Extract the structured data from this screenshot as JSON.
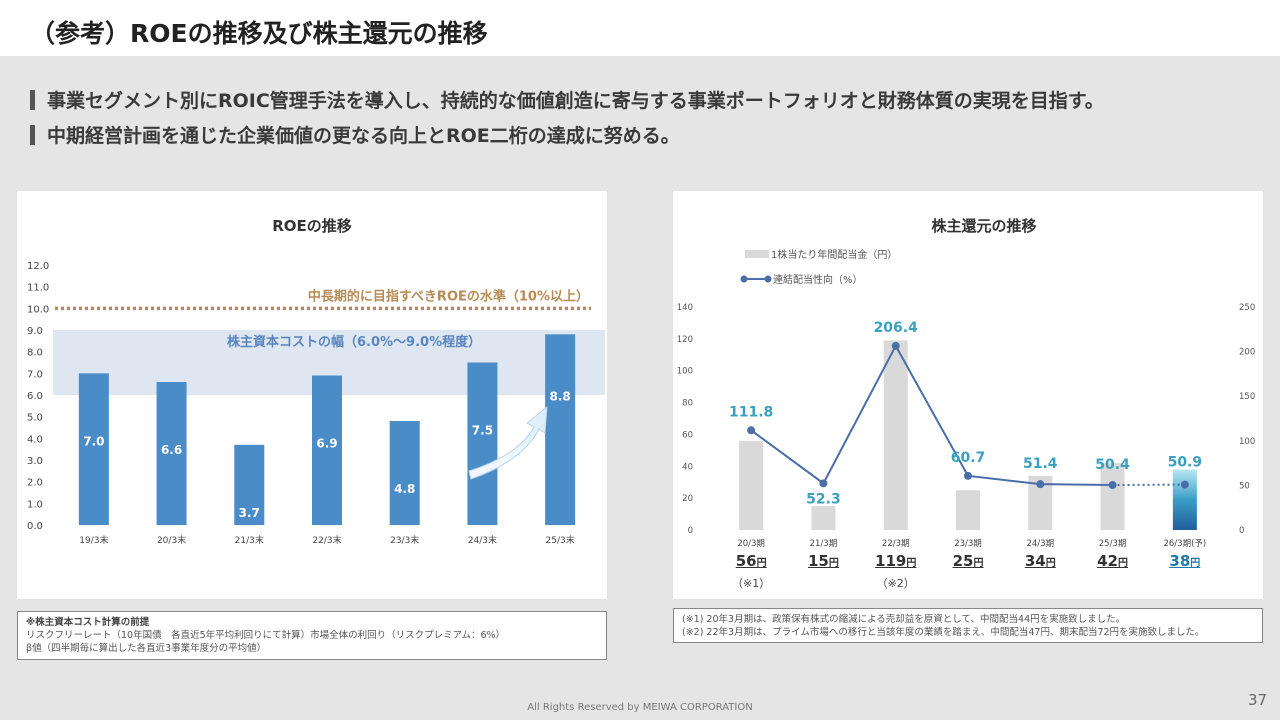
{
  "page": {
    "title": "（参考）ROEの推移及び株主還元の推移",
    "bullets": [
      "事業セグメント別にROIC管理手法を導入し、持続的な価値創造に寄与する事業ポートフォリオと財務体質の実現を目指す。",
      "中期経営計画を通じた企業価値の更なる向上とROE二桁の達成に努める。"
    ],
    "footer": "All Rights Reserved by MEIWA CORPORATION",
    "page_number": "37"
  },
  "colors": {
    "bar_blue": "#4a8cc8",
    "band": "#dde6f1",
    "target_line": "#b88b55",
    "gray_bar": "#d9d9d9",
    "line": "#4a6ea8",
    "label_teal": "#3aa0c0"
  },
  "chart_data": [
    {
      "type": "bar",
      "title": "ROEの推移",
      "categories": [
        "19/3末",
        "20/3末",
        "21/3末",
        "22/3末",
        "23/3末",
        "24/3末",
        "25/3末"
      ],
      "values": [
        7.0,
        6.6,
        3.7,
        6.9,
        4.8,
        7.5,
        8.8
      ],
      "value_labels": [
        "7.0",
        "6.6",
        "3.7",
        "6.9",
        "4.8",
        "7.5",
        "8.8"
      ],
      "ylim": [
        0,
        12
      ],
      "yticks": [
        "0.0",
        "1.0",
        "2.0",
        "3.0",
        "4.0",
        "5.0",
        "6.0",
        "7.0",
        "8.0",
        "9.0",
        "10.0",
        "11.0",
        "12.0"
      ],
      "target": {
        "value": 10,
        "label": "中長期的に目指すべきROEの水準（10%以上）"
      },
      "band": {
        "from": 6.0,
        "to": 9.0,
        "label": "株主資本コストの幅（6.0%～9.0%程度）"
      }
    },
    {
      "type": "bar+line",
      "title": "株主還元の推移",
      "categories": [
        "20/3期",
        "21/3期",
        "22/3期",
        "23/3期",
        "24/3期",
        "25/3期",
        "26/3期(予)"
      ],
      "series": [
        {
          "name": "1株当たり年間配当金（円）",
          "values": [
            56,
            15,
            119,
            25,
            34,
            42,
            38
          ],
          "labels": [
            "56",
            "15",
            "119",
            "25",
            "34",
            "42",
            "38"
          ],
          "unit": "円"
        },
        {
          "name": "連結配当性向（%）",
          "values": [
            111.8,
            52.3,
            206.4,
            60.7,
            51.4,
            50.4,
            50.9
          ],
          "labels": [
            "111.8",
            "52.3",
            "206.4",
            "60.7",
            "51.4",
            "50.4",
            "50.9"
          ]
        }
      ],
      "ylim_left": [
        0,
        140
      ],
      "yticks_left": [
        "0",
        "20",
        "40",
        "60",
        "80",
        "100",
        "120",
        "140"
      ],
      "ylim_right": [
        0,
        250
      ],
      "yticks_right": [
        "0",
        "50",
        "100",
        "150",
        "200",
        "250"
      ],
      "marks": [
        "（※1）",
        "",
        "（※2）",
        "",
        "",
        "",
        ""
      ]
    }
  ],
  "notes": {
    "roe": {
      "title": "※株主資本コスト計算の前提",
      "lines": [
        "リスクフリーレート（10年国債　各直近5年平均利回りにて計算）市場全体の利回り（リスクプレミアム：6%）",
        "β値（四半期毎に算出した各直近3事業年度分の平均値）"
      ]
    },
    "dividend": {
      "lines": [
        "(※1) 20年3月期は、政策保有株式の縮減による売却益を原資として、中間配当44円を実施致しました。",
        "(※2) 22年3月期は、プライム市場への移行と当該年度の業績を踏まえ、中間配当47円、期末配当72円を実施致しました。"
      ]
    }
  }
}
